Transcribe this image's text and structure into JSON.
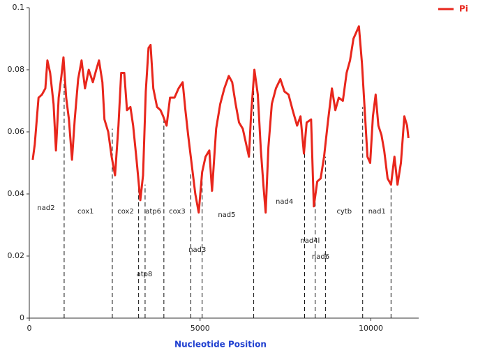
{
  "chart_data": {
    "type": "line",
    "xlabel": "Nucleotide Position",
    "xlim": [
      0,
      11400
    ],
    "ylim": [
      0,
      0.1
    ],
    "xticks": [
      0,
      5000,
      10000
    ],
    "yticks": [
      0,
      0.02,
      0.04,
      0.06,
      0.08,
      0.1
    ],
    "legend": "top-right",
    "series": [
      {
        "name": "Pi",
        "color": "#e8261c",
        "x": [
          100,
          160,
          270,
          370,
          470,
          530,
          610,
          710,
          780,
          860,
          940,
          1000,
          1080,
          1160,
          1250,
          1330,
          1430,
          1530,
          1630,
          1740,
          1860,
          1960,
          2040,
          2140,
          2200,
          2310,
          2410,
          2510,
          2610,
          2690,
          2780,
          2860,
          2960,
          3040,
          3140,
          3250,
          3330,
          3410,
          3490,
          3550,
          3630,
          3740,
          3840,
          3920,
          4020,
          4120,
          4250,
          4370,
          4490,
          4570,
          4650,
          4760,
          4860,
          4960,
          5060,
          5160,
          5270,
          5350,
          5470,
          5590,
          5710,
          5840,
          5940,
          6040,
          6140,
          6250,
          6350,
          6430,
          6490,
          6590,
          6690,
          6780,
          6860,
          6920,
          7000,
          7100,
          7220,
          7350,
          7470,
          7590,
          7710,
          7840,
          7940,
          8040,
          8120,
          8250,
          8330,
          8430,
          8530,
          8630,
          8740,
          8860,
          8960,
          9060,
          9180,
          9290,
          9390,
          9490,
          9570,
          9650,
          9740,
          9820,
          9900,
          9980,
          10060,
          10140,
          10220,
          10310,
          10390,
          10490,
          10590,
          10690,
          10780,
          10880,
          10980,
          11060,
          11100
        ],
        "values": [
          0.051,
          0.056,
          0.071,
          0.072,
          0.074,
          0.083,
          0.079,
          0.069,
          0.054,
          0.071,
          0.078,
          0.084,
          0.071,
          0.064,
          0.051,
          0.064,
          0.077,
          0.083,
          0.074,
          0.08,
          0.076,
          0.08,
          0.083,
          0.076,
          0.064,
          0.06,
          0.052,
          0.046,
          0.062,
          0.079,
          0.079,
          0.067,
          0.068,
          0.062,
          0.051,
          0.038,
          0.046,
          0.073,
          0.087,
          0.088,
          0.074,
          0.068,
          0.067,
          0.065,
          0.062,
          0.071,
          0.071,
          0.074,
          0.076,
          0.067,
          0.059,
          0.049,
          0.04,
          0.034,
          0.047,
          0.052,
          0.054,
          0.041,
          0.061,
          0.069,
          0.074,
          0.078,
          0.076,
          0.069,
          0.063,
          0.061,
          0.056,
          0.052,
          0.065,
          0.08,
          0.072,
          0.054,
          0.042,
          0.034,
          0.055,
          0.069,
          0.074,
          0.077,
          0.073,
          0.072,
          0.067,
          0.062,
          0.065,
          0.053,
          0.063,
          0.064,
          0.036,
          0.044,
          0.045,
          0.052,
          0.063,
          0.074,
          0.067,
          0.071,
          0.07,
          0.079,
          0.083,
          0.09,
          0.092,
          0.094,
          0.082,
          0.067,
          0.052,
          0.05,
          0.065,
          0.072,
          0.062,
          0.059,
          0.054,
          0.045,
          0.043,
          0.052,
          0.043,
          0.05,
          0.065,
          0.062,
          0.058
        ]
      }
    ],
    "boundaries": [
      {
        "x": 1020,
        "top": 0.084
      },
      {
        "x": 2430,
        "top": 0.061
      },
      {
        "x": 3200,
        "top": 0.045
      },
      {
        "x": 3390,
        "top": 0.043
      },
      {
        "x": 3940,
        "top": 0.065
      },
      {
        "x": 4730,
        "top": 0.047
      },
      {
        "x": 5060,
        "top": 0.046
      },
      {
        "x": 6570,
        "top": 0.077
      },
      {
        "x": 8060,
        "top": 0.055
      },
      {
        "x": 8370,
        "top": 0.039
      },
      {
        "x": 8670,
        "top": 0.052
      },
      {
        "x": 9760,
        "top": 0.068
      },
      {
        "x": 10590,
        "top": 0.043
      }
    ],
    "genes": [
      {
        "label": "nad2",
        "x": 490,
        "y": 0.0355
      },
      {
        "label": "cox1",
        "x": 1650,
        "y": 0.0344
      },
      {
        "label": "cox2",
        "x": 2820,
        "y": 0.0344
      },
      {
        "label": "atp6",
        "x": 3630,
        "y": 0.0344
      },
      {
        "label": "cox3",
        "x": 4330,
        "y": 0.0344
      },
      {
        "label": "nad5",
        "x": 5780,
        "y": 0.0333
      },
      {
        "label": "nad3",
        "x": 4920,
        "y": 0.022
      },
      {
        "label": "atp8",
        "x": 3370,
        "y": 0.0142
      },
      {
        "label": "nad4",
        "x": 7470,
        "y": 0.0375
      },
      {
        "label": "nad4l",
        "x": 8220,
        "y": 0.025
      },
      {
        "label": "nad6",
        "x": 8530,
        "y": 0.0198
      },
      {
        "label": "cytb",
        "x": 9220,
        "y": 0.0344
      },
      {
        "label": "nad1",
        "x": 10180,
        "y": 0.0344
      }
    ]
  }
}
